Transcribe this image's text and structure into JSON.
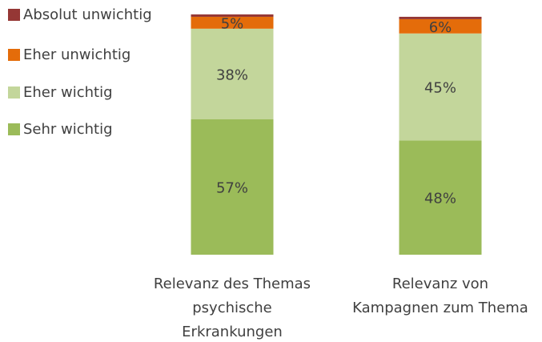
{
  "chart_data": {
    "type": "stacked_bar",
    "categories": [
      "Relevanz des Themas\npsychische\nErkrankungen",
      "Relevanz von\nKampagnen zum Thema"
    ],
    "series": [
      {
        "name": "Sehr wichtig",
        "color": "#9bbb59",
        "values": [
          57,
          48
        ],
        "value_labels": [
          "57%",
          "48%"
        ]
      },
      {
        "name": "Eher wichtig",
        "color": "#c3d69b",
        "values": [
          38,
          45
        ],
        "value_labels": [
          "38%",
          "45%"
        ]
      },
      {
        "name": "Eher unwichtig",
        "color": "#e46c0a",
        "values": [
          5,
          6
        ],
        "value_labels": [
          "5%",
          "6%"
        ]
      },
      {
        "name": "Absolut unwichtig",
        "color": "#953735",
        "values": [
          1,
          1
        ]
      }
    ],
    "legend": "left"
  }
}
